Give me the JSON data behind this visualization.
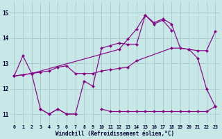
{
  "bg_color": "#c8e8e8",
  "grid_color": "#aacccc",
  "line_color": "#880088",
  "xlabel": "Windchill (Refroidissement éolien,°C)",
  "ylim": [
    10.6,
    15.4
  ],
  "yticks": [
    11,
    12,
    13,
    14,
    15
  ],
  "xlim": [
    -0.5,
    23.5
  ],
  "hours": [
    0,
    1,
    2,
    3,
    4,
    5,
    6,
    7,
    8,
    9,
    10,
    11,
    12,
    13,
    14,
    15,
    16,
    17,
    18,
    19,
    20,
    21,
    22,
    23
  ],
  "line_A_x": [
    0,
    1,
    2,
    3,
    4,
    5,
    6,
    7,
    8,
    9,
    10,
    11,
    12,
    13,
    14,
    15,
    16,
    17,
    18,
    19,
    20,
    21,
    22,
    23
  ],
  "line_A_y": [
    12.5,
    13.3,
    12.6,
    11.2,
    11.0,
    11.2,
    11.0,
    11.0,
    12.3,
    12.1,
    13.6,
    13.7,
    13.8,
    13.75,
    13.75,
    14.9,
    14.6,
    14.75,
    14.55,
    13.6,
    13.55,
    13.2,
    12.0,
    11.3
  ],
  "line_B_x": [
    0,
    2,
    3,
    4,
    5,
    6,
    7,
    8,
    9,
    10,
    11,
    12,
    13,
    14,
    18,
    19,
    20,
    21,
    22,
    23
  ],
  "line_B_y": [
    12.5,
    12.6,
    12.65,
    12.7,
    12.85,
    12.9,
    12.6,
    12.6,
    12.6,
    12.7,
    12.75,
    12.8,
    12.85,
    13.1,
    13.6,
    13.6,
    13.55,
    13.5,
    13.5,
    14.25
  ],
  "line_C_x": [
    0,
    1,
    2,
    12,
    13,
    14,
    15,
    16,
    17,
    18
  ],
  "line_C_y": [
    12.5,
    12.55,
    12.6,
    13.55,
    13.95,
    14.35,
    14.9,
    14.55,
    14.7,
    14.3
  ],
  "line_D_x": [
    3,
    4,
    5,
    6,
    7,
    10,
    11,
    12,
    13,
    14,
    15,
    16,
    17,
    18,
    19,
    20,
    21,
    22,
    23
  ],
  "line_D_y": [
    11.2,
    11.0,
    11.2,
    11.0,
    11.0,
    11.2,
    11.1,
    11.1,
    11.1,
    11.1,
    11.1,
    11.1,
    11.1,
    11.1,
    11.1,
    11.1,
    11.1,
    11.1,
    11.3
  ]
}
